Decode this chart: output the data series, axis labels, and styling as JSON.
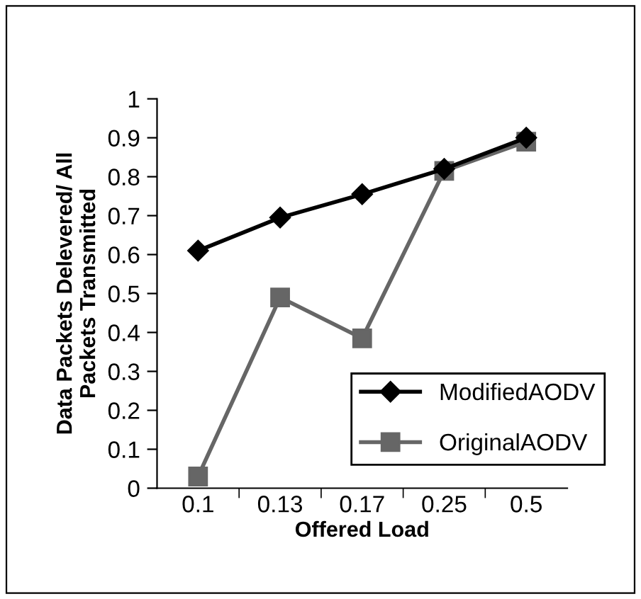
{
  "chart_data": {
    "type": "line",
    "xlabel": "Offered Load",
    "ylabel": "Data Packets Delevered/ All\nPackets Transmitted",
    "categories": [
      "0.1",
      "0.13",
      "0.17",
      "0.25",
      "0.5"
    ],
    "series": [
      {
        "name": "ModifiedAODV",
        "color": "#000000",
        "marker": "diamond",
        "values": [
          0.61,
          0.695,
          0.755,
          0.82,
          0.9
        ]
      },
      {
        "name": "OriginalAODV",
        "color": "#666666",
        "marker": "square",
        "values": [
          0.03,
          0.49,
          0.385,
          0.815,
          0.89
        ]
      }
    ],
    "ylim": [
      0,
      1
    ],
    "yticks": [
      0,
      0.1,
      0.2,
      0.3,
      0.4,
      0.5,
      0.6,
      0.7,
      0.8,
      0.9,
      1
    ],
    "grid": false,
    "legend": "bottom right",
    "line_style": "solid"
  }
}
